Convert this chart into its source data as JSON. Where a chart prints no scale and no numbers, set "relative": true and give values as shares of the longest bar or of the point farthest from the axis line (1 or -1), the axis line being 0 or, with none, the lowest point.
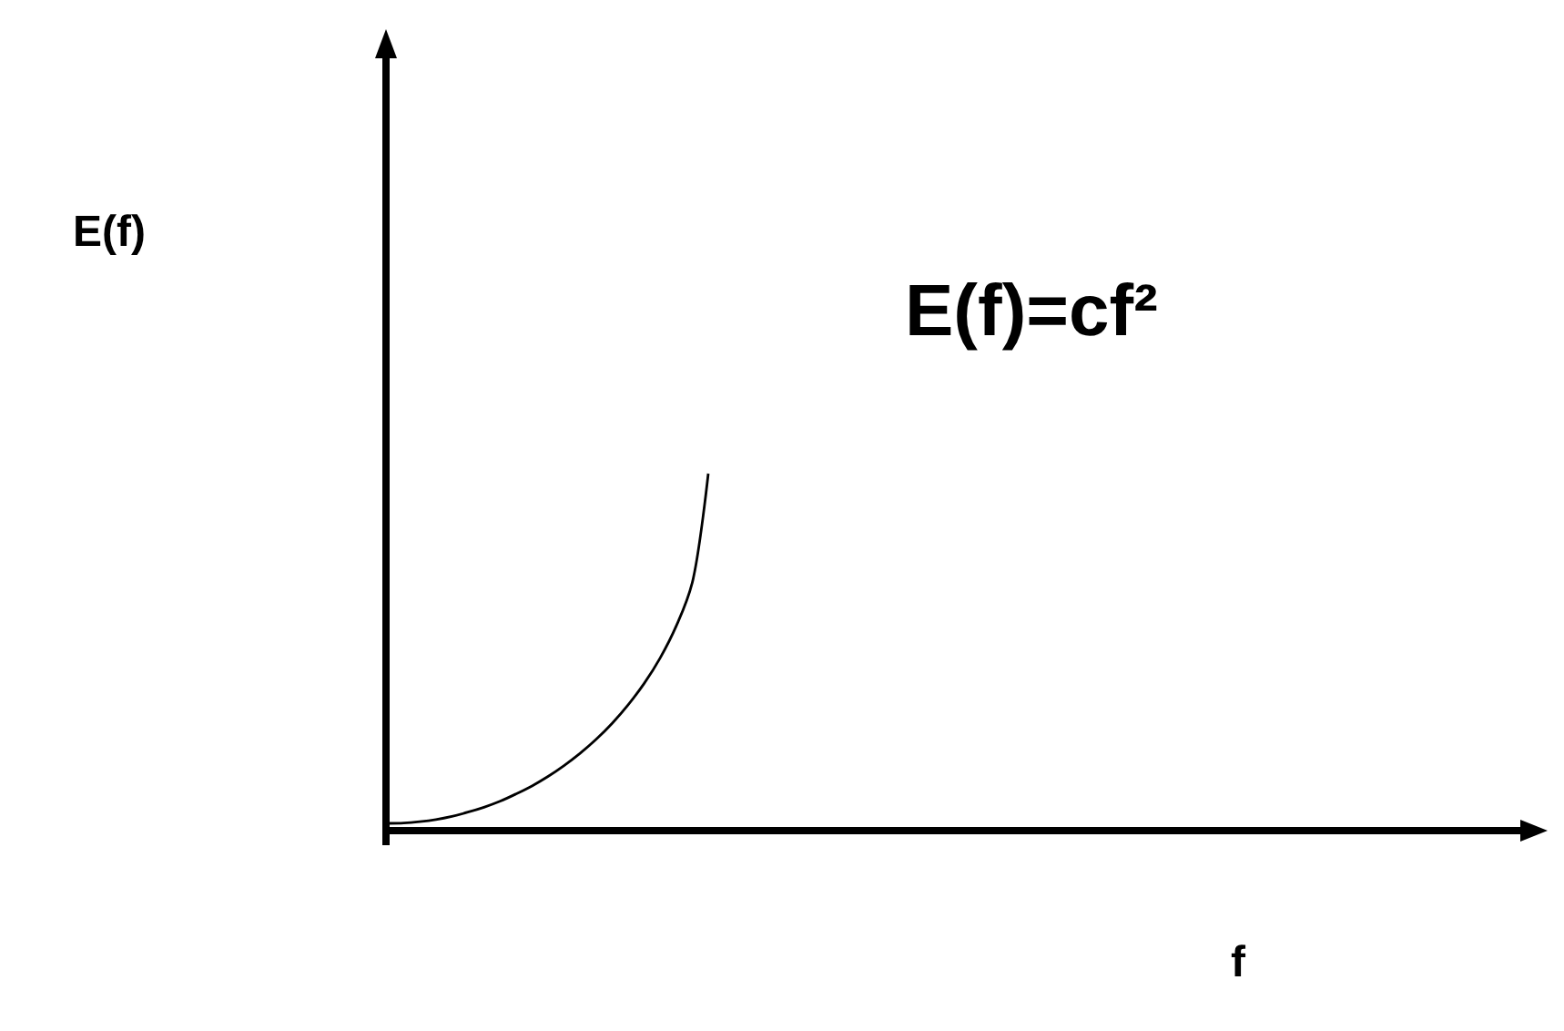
{
  "chart_data": {
    "type": "line",
    "relative": true,
    "xlabel": "f",
    "annotations": [
      "E(f)",
      "E(f)=cf²"
    ],
    "categories": [
      null,
      null,
      null,
      null,
      null,
      null,
      null,
      null,
      null,
      null,
      null,
      null,
      null,
      null,
      null,
      null,
      null,
      null,
      null,
      null,
      null,
      null,
      null,
      null,
      null,
      null,
      null,
      null,
      null,
      null,
      null,
      null,
      null,
      null,
      null,
      null,
      null,
      null,
      null,
      null,
      null,
      null,
      null,
      null,
      null,
      null,
      null,
      null,
      null,
      null,
      null,
      null,
      null,
      null,
      null,
      null,
      null,
      null,
      null,
      null,
      null,
      null,
      null,
      null,
      null,
      null,
      null,
      null,
      null,
      null,
      null,
      null,
      null
    ],
    "series": [
      {
        "color": "#000000",
        "values": [
          0,
          0.001,
          0.005,
          0.011,
          0.02,
          0.032,
          0.046,
          0.063,
          0.084,
          0.107,
          0.134,
          0.165,
          0.2,
          0.24,
          0.286,
          0.339,
          0.4,
          0.473,
          0.564,
          0.688,
          1,
          null,
          null,
          null,
          null,
          null,
          null,
          null,
          null,
          null,
          null,
          null,
          null,
          null,
          null,
          null,
          null,
          null,
          null,
          null,
          null,
          null,
          null,
          null,
          null,
          null,
          null,
          null,
          null,
          null,
          null,
          null,
          null,
          null,
          null,
          null,
          null,
          null,
          null,
          null,
          null,
          null,
          null,
          null,
          null,
          null,
          null,
          null,
          null,
          null,
          null,
          null,
          null
        ]
      }
    ],
    "marker": "none",
    "line_style": "solid"
  }
}
